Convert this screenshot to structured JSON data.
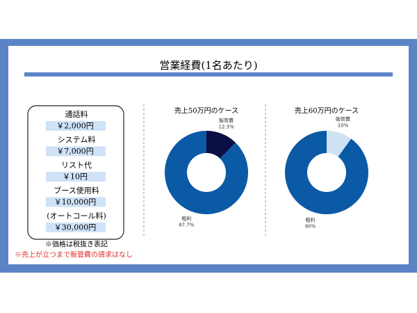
{
  "title": "営業経費(1名あたり)",
  "costs": [
    {
      "label": "通話料",
      "price": "￥2,000円"
    },
    {
      "label": "システム料",
      "price": "￥7,000円"
    },
    {
      "label": "リスト代",
      "price": "￥10円"
    },
    {
      "label": "ブース使用料",
      "price": "￥10,000円"
    },
    {
      "label": "(オートコール料)",
      "price": "￥30,000円"
    }
  ],
  "notes": [
    "※価格は税抜き表記",
    "※売上が立つまで販管費の請求はなし"
  ],
  "chart_data": [
    {
      "type": "pie",
      "title": "売上50万円のケース",
      "categories": [
        "販管費",
        "粗利"
      ],
      "values": [
        12.3,
        87.7
      ],
      "value_labels": [
        "12.3%",
        "87.7%"
      ],
      "colors": [
        "#0b0f45",
        "#0b5aa6"
      ]
    },
    {
      "type": "pie",
      "title": "売上60万円のケース",
      "categories": [
        "販管費",
        "粗利"
      ],
      "values": [
        10,
        90
      ],
      "value_labels": [
        "10%",
        "90%"
      ],
      "colors": [
        "#cfe2f3",
        "#0b5aa6"
      ]
    }
  ]
}
